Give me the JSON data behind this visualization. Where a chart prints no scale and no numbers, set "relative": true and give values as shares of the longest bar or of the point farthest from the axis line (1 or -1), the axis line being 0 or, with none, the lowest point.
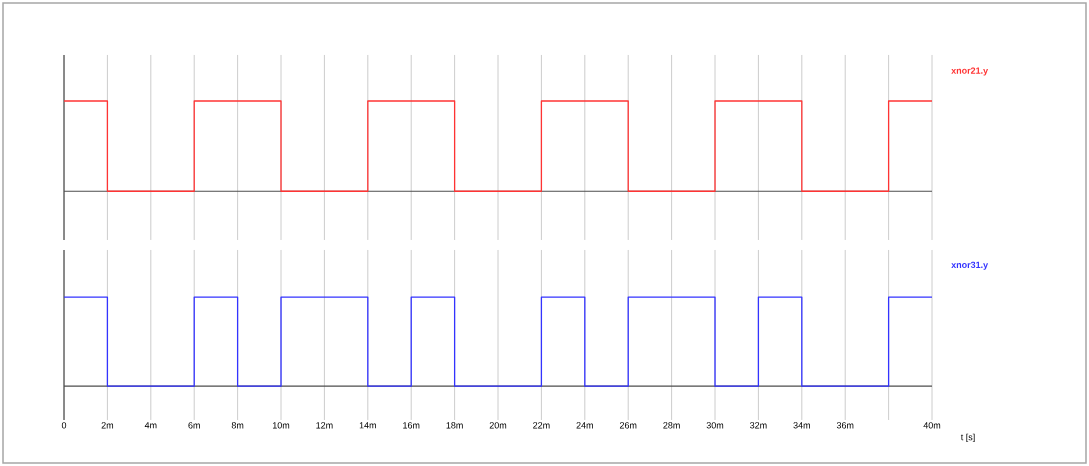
{
  "chart_data": [
    {
      "type": "step",
      "relative": true,
      "grid": "x",
      "tick_labels": false,
      "xlim": [
        0,
        40
      ],
      "xticks": [
        0,
        2,
        4,
        6,
        8,
        10,
        12,
        14,
        16,
        18,
        20,
        22,
        24,
        26,
        28,
        30,
        32,
        34,
        36,
        38,
        40
      ],
      "series": [
        {
          "name": "xnor21.y",
          "color": "#ff3333",
          "x": [
            0,
            2,
            6,
            10,
            14,
            18,
            22,
            26,
            30,
            34,
            38,
            40
          ],
          "values": [
            1,
            0,
            1,
            0,
            1,
            0,
            1,
            0,
            1,
            0,
            1,
            1
          ]
        }
      ]
    },
    {
      "type": "step",
      "relative": true,
      "grid": "x",
      "tick_labels": "x",
      "xlabel": "t [s]",
      "xlim": [
        0,
        40
      ],
      "xticks": [
        0,
        {
          "value": 2,
          "label": "2m"
        },
        {
          "value": 4,
          "label": "4m"
        },
        {
          "value": 6,
          "label": "6m"
        },
        {
          "value": 8,
          "label": "8m"
        },
        {
          "value": 10,
          "label": "10m"
        },
        {
          "value": 12,
          "label": "12m"
        },
        {
          "value": 14,
          "label": "14m"
        },
        {
          "value": 16,
          "label": "16m"
        },
        {
          "value": 18,
          "label": "18m"
        },
        {
          "value": 20,
          "label": "20m"
        },
        {
          "value": 22,
          "label": "22m"
        },
        {
          "value": 24,
          "label": "24m"
        },
        {
          "value": 26,
          "label": "26m"
        },
        {
          "value": 28,
          "label": "28m"
        },
        {
          "value": 30,
          "label": "30m"
        },
        {
          "value": 32,
          "label": "32m"
        },
        {
          "value": 34,
          "label": "34m"
        },
        {
          "value": 36,
          "label": "36m"
        },
        {
          "value": 38,
          "label": null
        },
        {
          "value": 40,
          "label": "40m"
        }
      ],
      "series": [
        {
          "name": "xnor31.y",
          "color": "#3333ff",
          "x": [
            0,
            2,
            6,
            8,
            10,
            14,
            16,
            18,
            22,
            24,
            26,
            30,
            32,
            34,
            38,
            40
          ],
          "values": [
            1,
            0,
            1,
            0,
            1,
            0,
            1,
            0,
            1,
            0,
            1,
            0,
            1,
            0,
            1,
            1
          ]
        }
      ]
    }
  ]
}
